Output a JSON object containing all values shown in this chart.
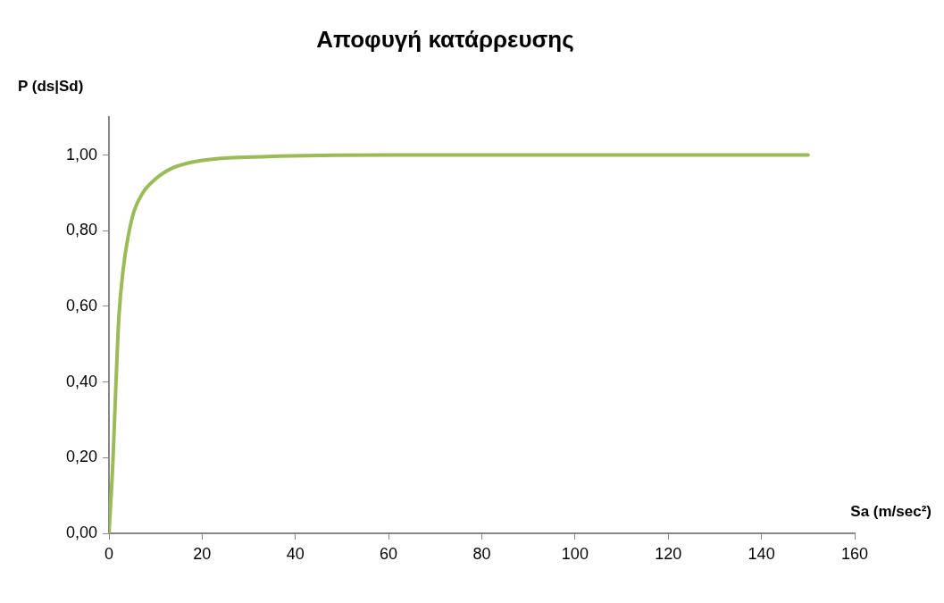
{
  "chart_data": {
    "type": "line",
    "title": "Αποφυγή κατάρρευσης",
    "xlabel": "Sa (m/sec²)",
    "ylabel": "P (ds|Sd)",
    "series": [
      {
        "color": "#9bbb59",
        "x": [
          0,
          0.85,
          1.48,
          2.12,
          3.08,
          4.05,
          5.34,
          7.26,
          9.83,
          13.7,
          20.1,
          34.2,
          60,
          100,
          150
        ],
        "values": [
          0,
          0.19,
          0.39,
          0.57,
          0.7,
          0.78,
          0.85,
          0.9,
          0.935,
          0.966,
          0.986,
          0.996,
          1,
          1,
          1
        ]
      }
    ],
    "xlim": [
      0,
      160
    ],
    "xticks": [
      0,
      20,
      40,
      60,
      80,
      100,
      120,
      140,
      160
    ],
    "ylim": [
      0,
      1.1
    ],
    "yticks": [
      {
        "value": 0,
        "label": "0,00"
      },
      {
        "value": 0.2,
        "label": "0,20"
      },
      {
        "value": 0.4,
        "label": "0,40"
      },
      {
        "value": 0.6,
        "label": "0,60"
      },
      {
        "value": 0.8,
        "label": "0,80"
      },
      {
        "value": 1,
        "label": "1,00"
      }
    ],
    "grid": false,
    "legend": false,
    "marker": "none",
    "line_style": "solid"
  }
}
